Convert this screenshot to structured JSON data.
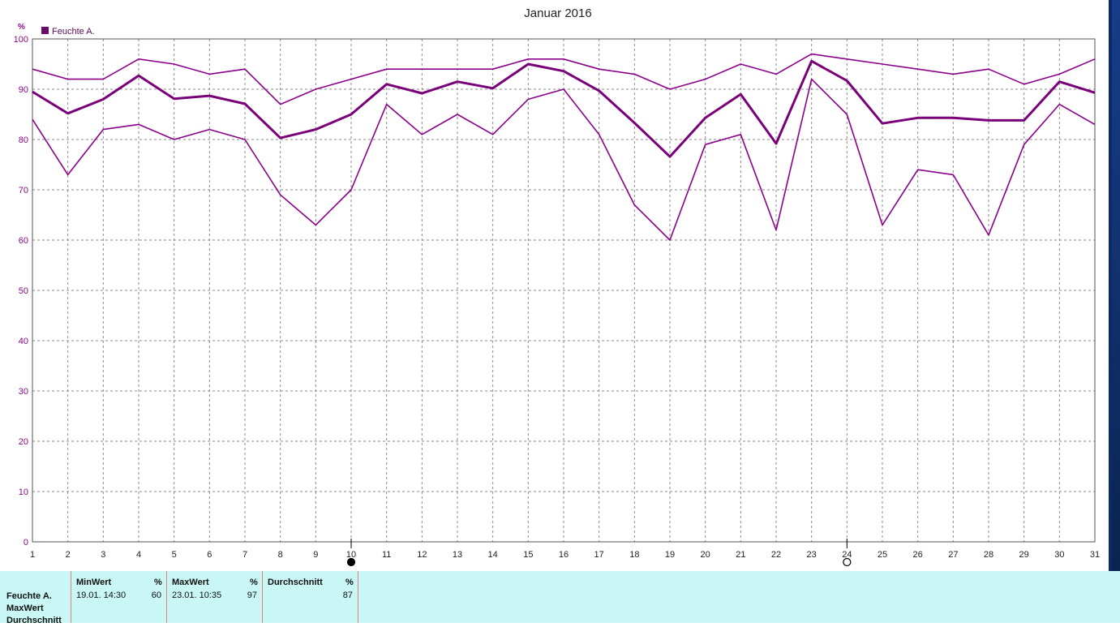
{
  "chart_data": {
    "type": "line",
    "title": "Januar 2016",
    "unit_label": "%",
    "legend": {
      "label": "Feuchte A.",
      "color": "#6a0a6a",
      "placement": "top-left"
    },
    "x": [
      1,
      2,
      3,
      4,
      5,
      6,
      7,
      8,
      9,
      10,
      11,
      12,
      13,
      14,
      15,
      16,
      17,
      18,
      19,
      20,
      21,
      22,
      23,
      24,
      25,
      26,
      27,
      28,
      29,
      30,
      31
    ],
    "ylim": [
      0,
      100
    ],
    "yticks": [
      0,
      10,
      20,
      30,
      40,
      50,
      60,
      70,
      80,
      90,
      100
    ],
    "grid": true,
    "series": [
      {
        "name": "Feuchte A. MaxWert",
        "color": "#8b008b",
        "width": 1.6,
        "values": [
          94,
          92,
          92,
          96,
          95,
          93,
          94,
          87,
          90,
          92,
          94,
          94,
          94,
          94,
          96,
          96,
          94,
          93,
          90,
          92,
          95,
          93,
          97,
          96,
          95,
          94,
          93,
          94,
          91,
          93,
          96
        ]
      },
      {
        "name": "Feuchte A.",
        "color": "#7a007a",
        "width": 3,
        "values": [
          89.5,
          85.2,
          88,
          92.7,
          88.1,
          88.7,
          87.1,
          80.3,
          82,
          85,
          91,
          89.2,
          91.5,
          90.2,
          95,
          93.6,
          89.7,
          83.3,
          76.6,
          84.3,
          89,
          79.2,
          95.6,
          91.7,
          83.2,
          84.3,
          84.3,
          83.8,
          83.8,
          91.5,
          89.3
        ]
      },
      {
        "name": "Feuchte A. MinWert",
        "color": "#8b008b",
        "width": 1.6,
        "values": [
          84,
          73,
          82,
          83,
          80,
          82,
          80,
          69,
          63,
          70,
          87,
          81,
          85,
          81,
          88,
          90,
          81,
          67,
          60,
          79,
          81,
          62,
          92,
          85,
          63,
          74,
          73,
          61,
          79,
          87,
          83
        ]
      }
    ],
    "markers": [
      {
        "x": 10,
        "style": "filled"
      },
      {
        "x": 24,
        "style": "open"
      }
    ]
  },
  "stats": {
    "row_labels": [
      "Feuchte A.",
      "MaxWert",
      "Durchschnitt"
    ],
    "columns": [
      {
        "header": "MinWert",
        "unit": "%",
        "date": "19.01.  14:30",
        "value": "60"
      },
      {
        "header": "MaxWert",
        "unit": "%",
        "date": "23.01.  10:35",
        "value": "97"
      },
      {
        "header": "Durchschnitt",
        "unit": "%",
        "date": "",
        "value": "87"
      }
    ]
  }
}
